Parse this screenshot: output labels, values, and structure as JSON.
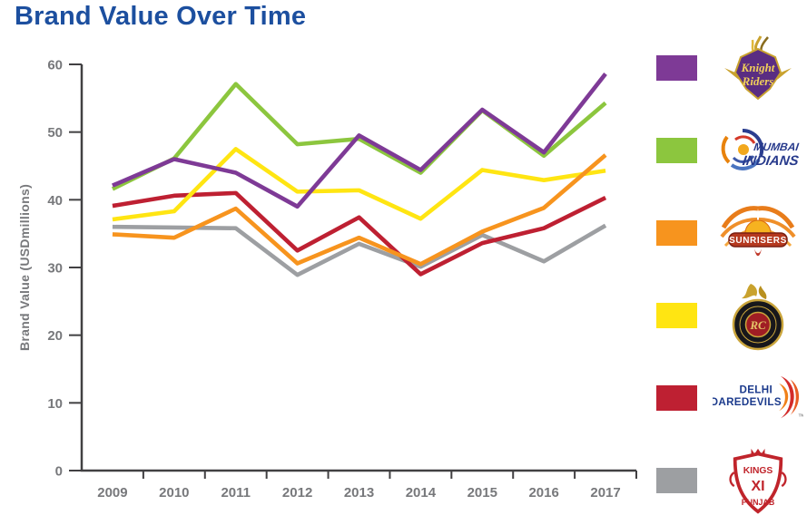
{
  "title": "Brand Value Over Time",
  "chart_data": {
    "type": "line",
    "x": [
      "2009",
      "2010",
      "2011",
      "2012",
      "2013",
      "2014",
      "2015",
      "2016",
      "2017"
    ],
    "xlabel": "",
    "ylabel": "Brand Value (USDmillions)",
    "ylim": [
      0,
      60
    ],
    "yticks": [
      0,
      10,
      20,
      30,
      40,
      50,
      60
    ],
    "grid": false,
    "legend_position": "right",
    "series": [
      {
        "id": "kkr",
        "name": "Kolkata Knight Riders",
        "color": "#7e3a96",
        "values": [
          42.1,
          46.0,
          44.0,
          39.0,
          49.5,
          44.4,
          53.3,
          47.0,
          58.6
        ]
      },
      {
        "id": "mi",
        "name": "Mumbai Indians",
        "color": "#8cc63e",
        "values": [
          41.6,
          46.1,
          57.1,
          48.2,
          49.0,
          44.0,
          53.2,
          46.5,
          54.3
        ]
      },
      {
        "id": "srh",
        "name": "Sunrisers Hyderabad",
        "color": "#f7941e",
        "values": [
          34.9,
          34.4,
          38.7,
          30.6,
          34.4,
          30.5,
          35.3,
          38.8,
          46.6
        ]
      },
      {
        "id": "rcb",
        "name": "Royal Challengers Bangalore",
        "color": "#ffe512",
        "values": [
          37.1,
          38.3,
          47.5,
          41.2,
          41.4,
          37.2,
          44.4,
          42.9,
          44.3
        ]
      },
      {
        "id": "dd",
        "name": "Delhi Daredevils",
        "color": "#be2032",
        "values": [
          39.1,
          40.6,
          41.0,
          32.5,
          37.4,
          29.0,
          33.6,
          35.8,
          40.3
        ]
      },
      {
        "id": "kxip",
        "name": "Kings XI Punjab",
        "color": "#9d9fa2",
        "values": [
          36.0,
          35.9,
          35.8,
          28.9,
          33.5,
          30.1,
          34.8,
          30.9,
          36.2
        ]
      }
    ]
  },
  "logos": {
    "kkr": {
      "line1": "Knight",
      "line2": "Riders"
    },
    "mi": {
      "line1": "MUMBAI",
      "line2": "INDIANS"
    },
    "srh": {
      "text": "SUNRISERS"
    },
    "rcb": {
      "monogram": "RC"
    },
    "dd": {
      "line1": "DELHI",
      "line2": "DAREDEVILS",
      "tm": "TM"
    },
    "kxip": {
      "line1": "KINGS",
      "line2": "XI",
      "line3": "PUNJAB"
    }
  }
}
